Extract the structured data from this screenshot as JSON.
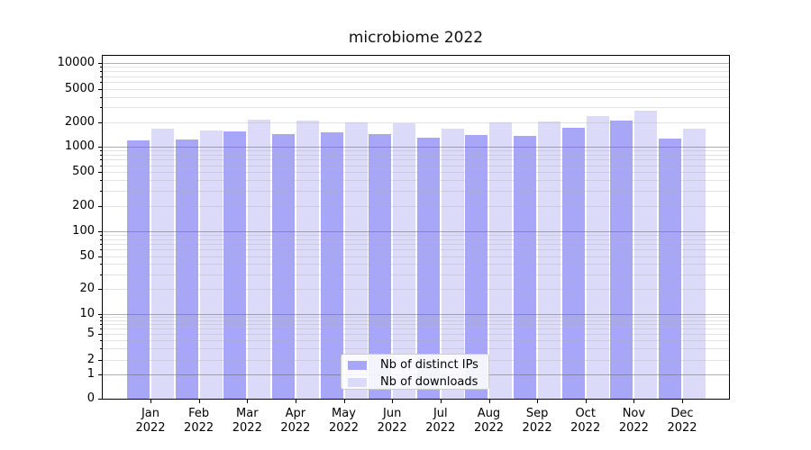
{
  "title": "microbiome 2022",
  "legend": {
    "items": [
      {
        "label": "Nb of distinct IPs",
        "key": "ips"
      },
      {
        "label": "Nb of downloads",
        "key": "downloads"
      }
    ]
  },
  "colors": {
    "ips": "#a7a6f7",
    "downloads": "#dbdaf9",
    "major_grid": "#b0b0b0",
    "minor_grid": "#e4e4e4",
    "spine": "#000000"
  },
  "x_axis": {
    "year": "2022",
    "months": [
      "Jan",
      "Feb",
      "Mar",
      "Apr",
      "May",
      "Jun",
      "Jul",
      "Aug",
      "Sep",
      "Oct",
      "Nov",
      "Dec"
    ]
  },
  "y_axis": {
    "tick_values": [
      0,
      1,
      2,
      5,
      10,
      20,
      50,
      100,
      200,
      500,
      1000,
      2000,
      5000,
      10000
    ],
    "tick_labels": [
      "0",
      "1",
      "2",
      "5",
      "10",
      "20",
      "50",
      "100",
      "200",
      "500",
      "1000",
      "2000",
      "5000",
      "10000"
    ]
  },
  "chart_data": {
    "type": "bar",
    "title": "microbiome 2022",
    "categories": [
      "Jan 2022",
      "Feb 2022",
      "Mar 2022",
      "Apr 2022",
      "May 2022",
      "Jun 2022",
      "Jul 2022",
      "Aug 2022",
      "Sep 2022",
      "Oct 2022",
      "Nov 2022",
      "Dec 2022"
    ],
    "series": [
      {
        "name": "Nb of distinct IPs",
        "color": "#a7a6f7",
        "values": [
          1190,
          1210,
          1520,
          1440,
          1490,
          1440,
          1290,
          1400,
          1350,
          1700,
          2070,
          1270
        ]
      },
      {
        "name": "Nb of downloads",
        "color": "#dbdaf9",
        "values": [
          1650,
          1590,
          2110,
          2080,
          1980,
          1920,
          1650,
          1990,
          2050,
          2360,
          2700,
          1650
        ]
      }
    ],
    "yscale": "symlog",
    "y_ticks": [
      0,
      1,
      2,
      5,
      10,
      20,
      50,
      100,
      200,
      500,
      1000,
      2000,
      5000,
      10000
    ],
    "ylim": [
      0,
      12700
    ],
    "grid": "major-and-minor, drawn over bars",
    "legend_position": "lower center"
  }
}
